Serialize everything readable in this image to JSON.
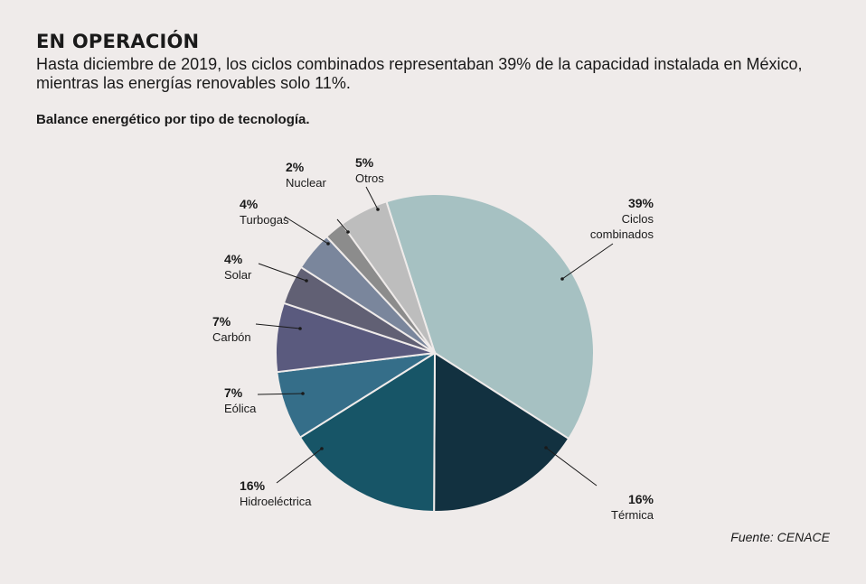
{
  "header": {
    "title": "EN OPERACIÓN",
    "subtitle": "Hasta diciembre de 2019, los ciclos combinados representaban 39% de la capacidad instalada en México, mientras las energías renovables solo 11%."
  },
  "source": "Fuente: CENACE",
  "chart_data": {
    "type": "pie",
    "title": "Balance energético por tipo de tecnología.",
    "unit": "%",
    "slices": [
      {
        "label": "Ciclos combinados",
        "value": 39,
        "display": "39%",
        "color": "#a6c1c2"
      },
      {
        "label": "Térmica",
        "value": 16,
        "display": "16%",
        "color": "#123140"
      },
      {
        "label": "Hidroeléctrica",
        "value": 16,
        "display": "16%",
        "color": "#175567"
      },
      {
        "label": "Eólica",
        "value": 7,
        "display": "7%",
        "color": "#356e89"
      },
      {
        "label": "Carbón",
        "value": 7,
        "display": "7%",
        "color": "#5a5a7e"
      },
      {
        "label": "Solar",
        "value": 4,
        "display": "4%",
        "color": "#616074"
      },
      {
        "label": "Turbogas",
        "value": 4,
        "display": "4%",
        "color": "#7a869c"
      },
      {
        "label": "Nuclear",
        "value": 2,
        "display": "2%",
        "color": "#8c8c8c"
      },
      {
        "label": "Otros",
        "value": 5,
        "display": "5%",
        "color": "#bdbdbd"
      }
    ]
  }
}
